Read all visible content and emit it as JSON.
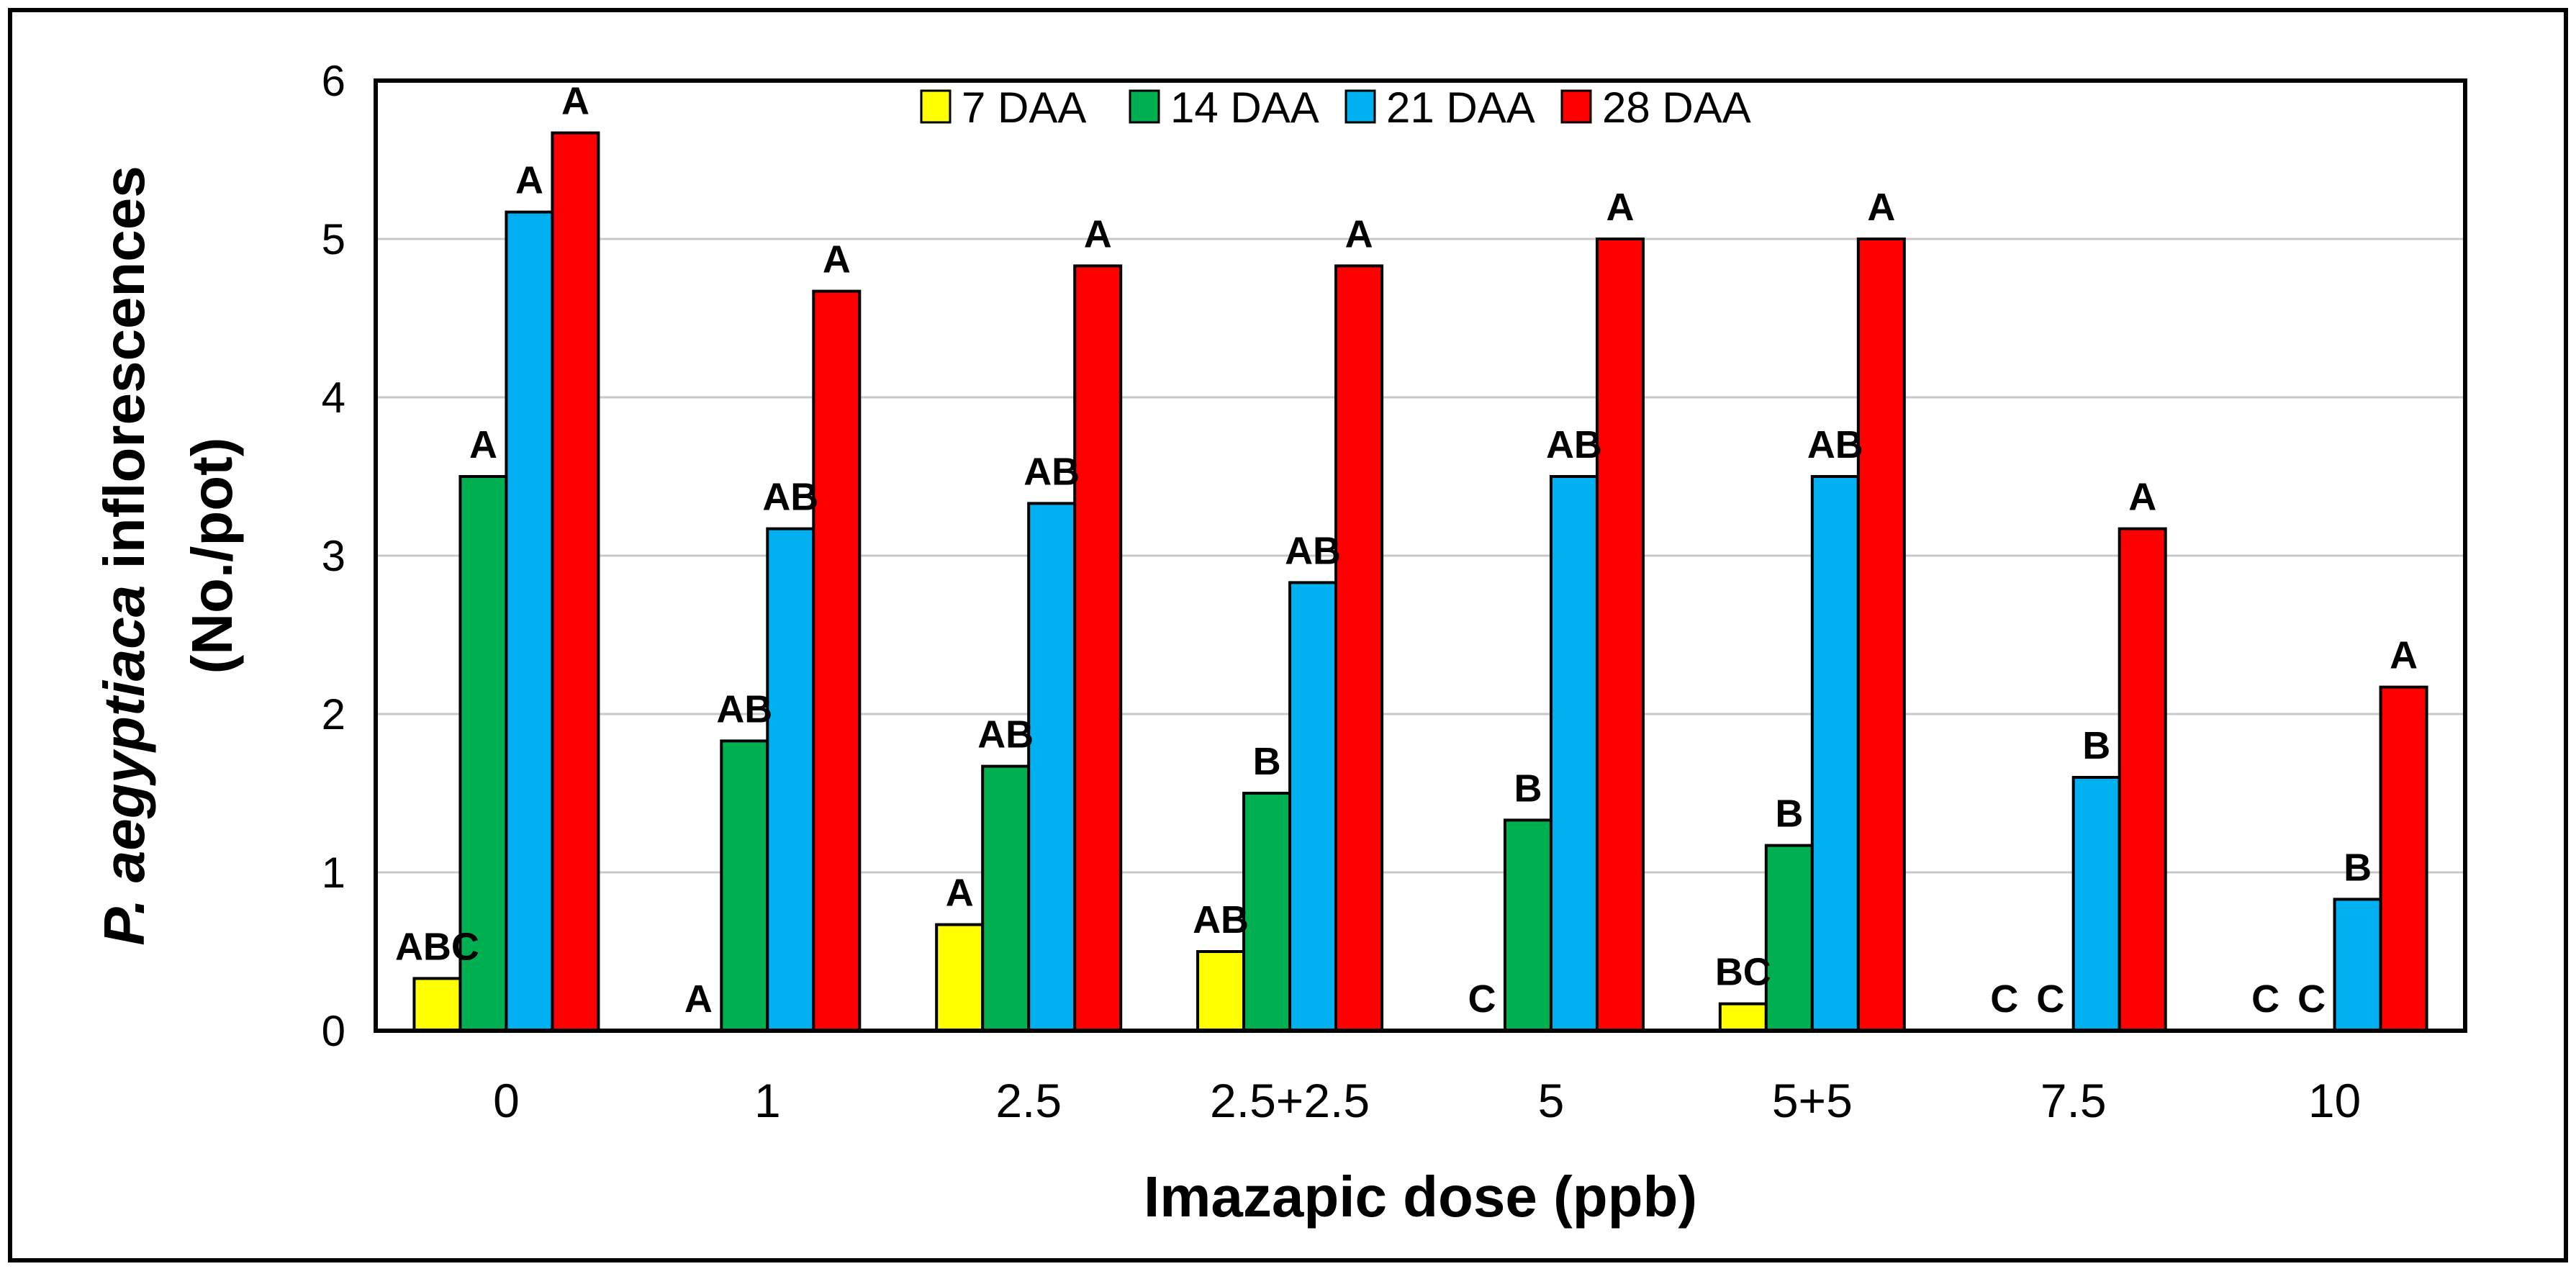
{
  "chart_data": {
    "type": "bar",
    "title": "",
    "xlabel": "Imazapic dose (ppb)",
    "ylabel_italic": "P. aegyptiaca",
    "ylabel_rest": " inflorescences",
    "ylabel_line2": "(No./pot)",
    "ylim": [
      0,
      6
    ],
    "yticks": [
      "0",
      "1",
      "2",
      "3",
      "4",
      "5",
      "6"
    ],
    "grid": true,
    "legend_position": "top-center",
    "categories": [
      "0",
      "1",
      "2.5",
      "2.5+2.5",
      "5",
      "5+5",
      "7.5",
      "10"
    ],
    "series": [
      {
        "name": "7 DAA",
        "color": "#ffff00",
        "values": [
          0.33,
          0,
          0.67,
          0.5,
          0,
          0.17,
          0,
          0
        ],
        "letters": [
          "ABC",
          "A",
          "A",
          "AB",
          "C",
          "BC",
          "C",
          "C"
        ]
      },
      {
        "name": "14 DAA",
        "color": "#00b050",
        "values": [
          3.5,
          1.83,
          1.67,
          1.5,
          1.33,
          1.17,
          0,
          0
        ],
        "letters": [
          "A",
          "AB",
          "AB",
          "B",
          "B",
          "B",
          "C",
          "C"
        ]
      },
      {
        "name": "21 DAA",
        "color": "#00b0f0",
        "values": [
          5.17,
          3.17,
          3.33,
          2.83,
          3.5,
          3.5,
          1.6,
          0.83
        ],
        "letters": [
          "A",
          "AB",
          "AB",
          "AB",
          "AB",
          "AB",
          "B",
          "B"
        ]
      },
      {
        "name": "28 DAA",
        "color": "#ff0000",
        "values": [
          5.67,
          4.67,
          4.83,
          4.83,
          5.0,
          5.0,
          3.17,
          2.17
        ],
        "letters": [
          "A",
          "A",
          "A",
          "A",
          "A",
          "A",
          "A",
          "A"
        ]
      }
    ]
  }
}
